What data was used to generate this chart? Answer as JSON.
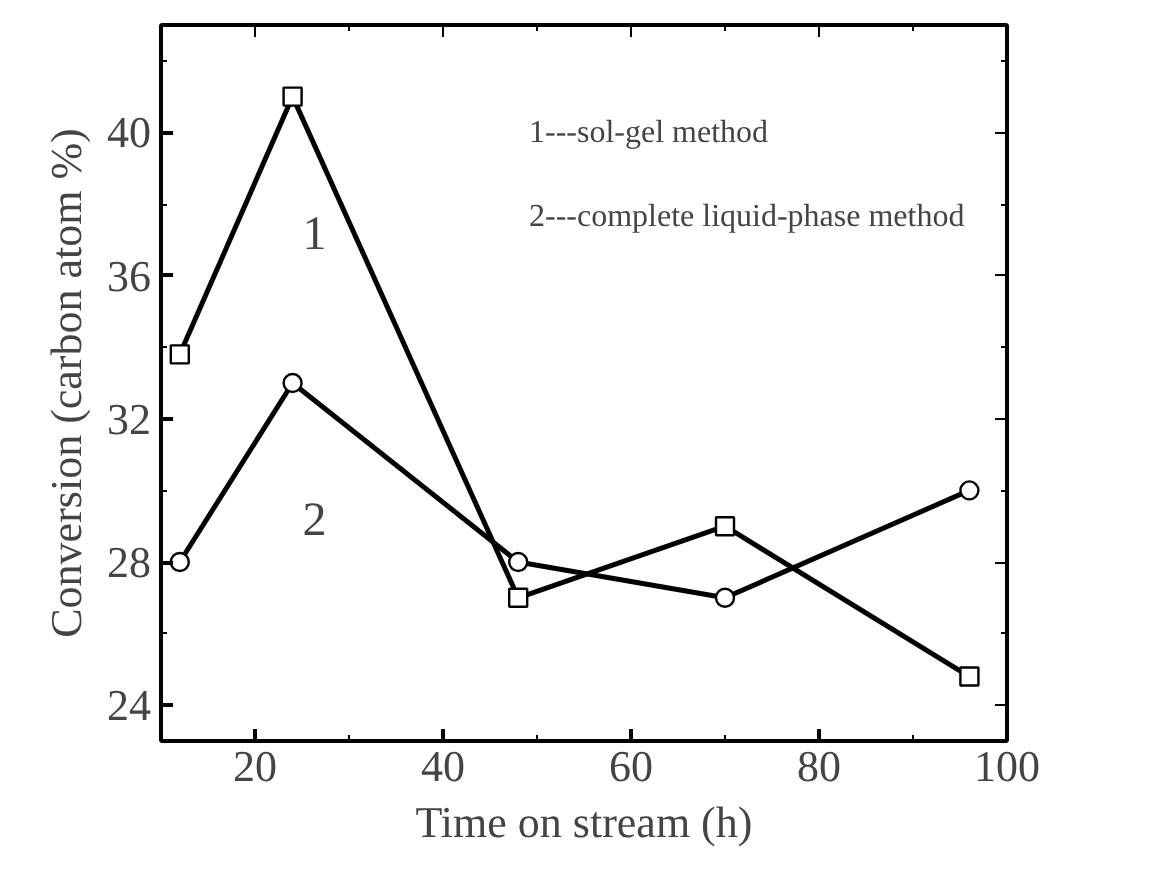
{
  "chart_data": {
    "type": "line",
    "xlabel": "Time on stream (h)",
    "ylabel": "Conversion (carbon atom %)",
    "x": [
      12,
      24,
      48,
      70,
      96
    ],
    "series": [
      {
        "name": "1",
        "color": "#000000",
        "marker": "square",
        "values": [
          33.8,
          41,
          27,
          29,
          24.8
        ]
      },
      {
        "name": "2",
        "color": "#000000",
        "marker": "circle",
        "values": [
          28,
          33,
          28,
          27,
          30
        ]
      }
    ],
    "annotations": [
      "1---sol-gel method",
      "2---complete liquid-phase method"
    ],
    "xlim": [
      10,
      100
    ],
    "ylim": [
      23,
      43
    ],
    "xticks": [
      20,
      40,
      60,
      80,
      100
    ],
    "yticks": [
      24,
      28,
      32,
      36,
      40
    ],
    "grid": false,
    "line_style": "solid"
  }
}
